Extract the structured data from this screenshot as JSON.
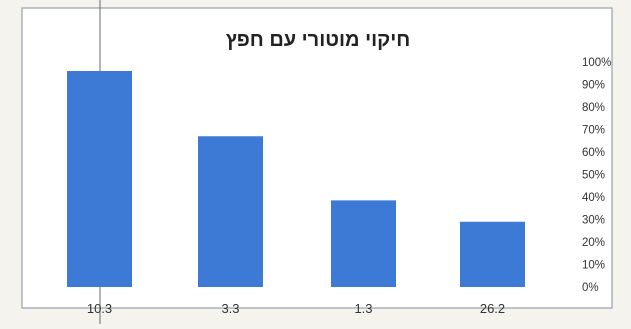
{
  "chart_data": {
    "type": "bar",
    "title": "חיקוי מוטורי עם חפץ",
    "categories": [
      "10.3",
      "3.3",
      "1.3",
      "26.2"
    ],
    "values": [
      0.96,
      0.67,
      0.385,
      0.29
    ],
    "ylim": [
      0,
      1
    ],
    "yticks": [
      "0%",
      "10%",
      "20%",
      "30%",
      "40%",
      "50%",
      "60%",
      "70%",
      "80%",
      "90%",
      "100%"
    ],
    "y_axis_side": "right",
    "grid": false,
    "legend": "none",
    "xlabel": "",
    "ylabel": "",
    "bar_color": "#3d7ad6"
  }
}
